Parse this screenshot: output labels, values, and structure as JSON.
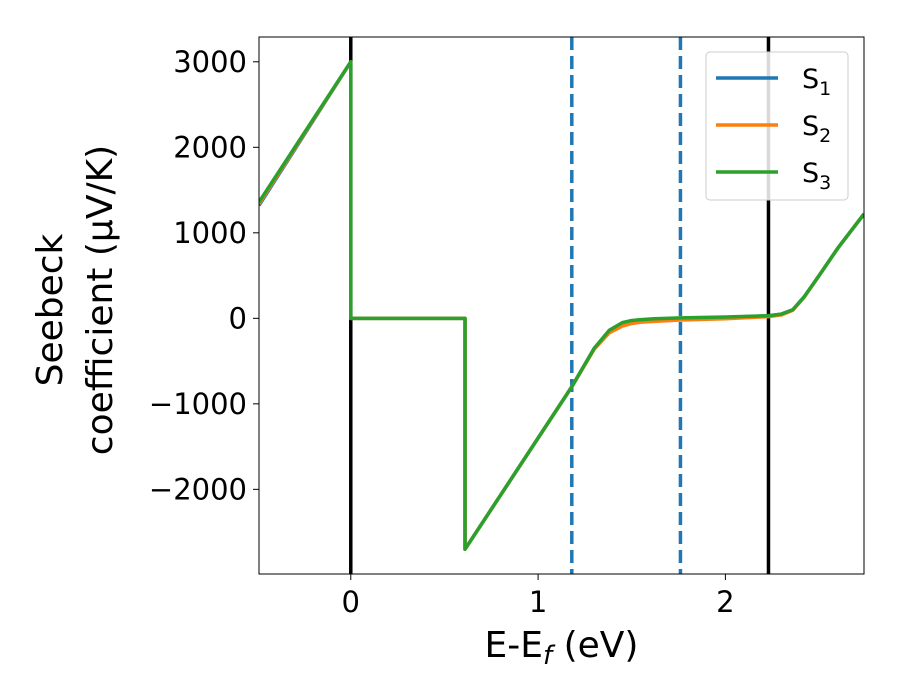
{
  "chart_data": {
    "type": "line",
    "xlabel": "E-E",
    "xlabel_sub": "f",
    "xlabel_unit": " (eV)",
    "ylabel_line1": "Seebeck",
    "ylabel_line2": "coefficient  (μV/K)",
    "xlim": [
      -0.49,
      2.74
    ],
    "ylim": [
      -2990,
      3290
    ],
    "x_ticks": [
      0,
      1,
      2
    ],
    "x_tick_labels": [
      "0",
      "1",
      "2"
    ],
    "y_ticks": [
      3000,
      2000,
      1000,
      0,
      -1000,
      -2000
    ],
    "y_tick_labels": [
      "3000",
      "2000",
      "1000",
      "0",
      "−1000",
      "−2000"
    ],
    "grid": false,
    "legend_position": "top-right",
    "vertical_lines": [
      {
        "x": 0.0,
        "style": "solid",
        "color": "#000000"
      },
      {
        "x": 2.23,
        "style": "solid",
        "color": "#000000"
      },
      {
        "x": 1.18,
        "style": "dashed",
        "color": "#1f77b4"
      },
      {
        "x": 1.76,
        "style": "dashed",
        "color": "#1f77b4"
      }
    ],
    "series": [
      {
        "name": "S",
        "subscript": "1",
        "color": "#1f77b4",
        "x": [
          -0.49,
          0.0,
          0.0,
          0.61,
          0.61,
          1.18,
          1.3,
          1.38,
          1.45,
          1.5,
          1.55,
          1.62,
          1.76,
          2.0,
          2.23,
          2.3,
          2.36,
          2.42,
          2.5,
          2.6,
          2.74
        ],
        "y": [
          1320,
          3000,
          0,
          0,
          -2700,
          -800,
          -350,
          -150,
          -60,
          -30,
          -20,
          -10,
          0,
          10,
          30,
          50,
          100,
          250,
          500,
          820,
          1220
        ]
      },
      {
        "name": "S",
        "subscript": "2",
        "color": "#ff7f0e",
        "x": [
          -0.49,
          0.0,
          0.0,
          0.61,
          0.61,
          1.18,
          1.3,
          1.38,
          1.45,
          1.5,
          1.55,
          1.62,
          1.76,
          2.0,
          2.23,
          2.3,
          2.36,
          2.42,
          2.5,
          2.6,
          2.74
        ],
        "y": [
          1340,
          3000,
          0,
          0,
          -2700,
          -800,
          -360,
          -170,
          -90,
          -60,
          -45,
          -35,
          -20,
          -5,
          20,
          40,
          95,
          245,
          500,
          820,
          1220
        ]
      },
      {
        "name": "S",
        "subscript": "3",
        "color": "#2ca02c",
        "x": [
          -0.49,
          0.0,
          0.0,
          0.61,
          0.61,
          1.18,
          1.3,
          1.38,
          1.45,
          1.5,
          1.55,
          1.62,
          1.76,
          2.0,
          2.23,
          2.3,
          2.36,
          2.42,
          2.5,
          2.6,
          2.74
        ],
        "y": [
          1360,
          3000,
          0,
          0,
          -2700,
          -800,
          -350,
          -140,
          -50,
          -25,
          -15,
          -5,
          5,
          15,
          30,
          50,
          100,
          250,
          500,
          820,
          1220
        ]
      }
    ]
  }
}
